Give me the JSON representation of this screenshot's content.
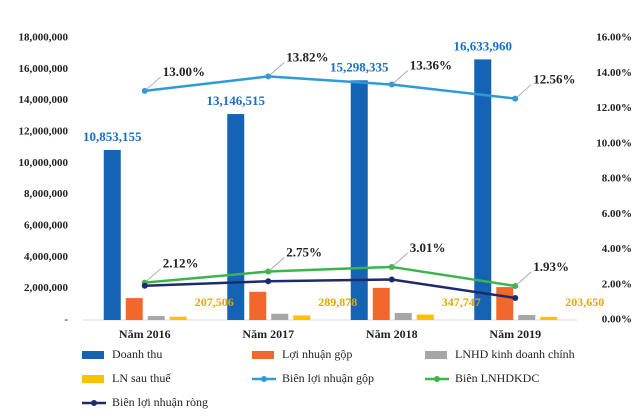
{
  "chart_data": {
    "type": "combo",
    "categories": [
      "Năm 2016",
      "Năm 2017",
      "Năm 2018",
      "Năm 2019"
    ],
    "ylim": [
      0,
      18000000
    ],
    "yticks": [
      {
        "value": 0,
        "label": "-"
      },
      {
        "value": 2000000,
        "label": "2,000,000"
      },
      {
        "value": 4000000,
        "label": "4,000,000"
      },
      {
        "value": 6000000,
        "label": "6,000,000"
      },
      {
        "value": 8000000,
        "label": "8,000,000"
      },
      {
        "value": 10000000,
        "label": "10,000,000"
      },
      {
        "value": 12000000,
        "label": "12,000,000"
      },
      {
        "value": 14000000,
        "label": "14,000,000"
      },
      {
        "value": 16000000,
        "label": "16,000,000"
      },
      {
        "value": 18000000,
        "label": "18,000,000"
      }
    ],
    "y2lim": [
      0,
      16
    ],
    "y2ticks": [
      {
        "value": 0,
        "label": "0.00%"
      },
      {
        "value": 2,
        "label": "2.00%"
      },
      {
        "value": 4,
        "label": "4.00%"
      },
      {
        "value": 6,
        "label": "6.00%"
      },
      {
        "value": 8,
        "label": "8.00%"
      },
      {
        "value": 10,
        "label": "10.00%"
      },
      {
        "value": 12,
        "label": "12.00%"
      },
      {
        "value": 14,
        "label": "14.00%"
      },
      {
        "value": 16,
        "label": "16.00%"
      }
    ],
    "series": [
      {
        "name": "Doanh thu",
        "type": "bar",
        "color": "#1463b4",
        "values": [
          10853155,
          13146515,
          15298335,
          16633960
        ],
        "value_labels": [
          "10,853,155",
          "13,146,515",
          "15,298,335",
          "16,633,960"
        ],
        "label_color": "#1a6fc0"
      },
      {
        "name": "Lợi nhuận gộp",
        "type": "bar",
        "color": "#f2682c",
        "values": [
          1400000,
          1800000,
          2050000,
          2100000
        ]
      },
      {
        "name": "LNHD kinh doanh chính",
        "type": "bar",
        "color": "#a6a6a6",
        "values": [
          250000,
          400000,
          450000,
          320000
        ]
      },
      {
        "name": "LN sau thuế",
        "type": "bar",
        "color": "#ffc000",
        "values": [
          207506,
          289878,
          347747,
          203650
        ],
        "value_labels": [
          "207,506",
          "289,878",
          "347,747",
          "203,650"
        ],
        "label_color": "#e0a800"
      },
      {
        "name": "Biên lợi nhuận gộp",
        "type": "line",
        "axis": "y2",
        "color": "#2e9bd6",
        "values": [
          13.0,
          13.82,
          13.36,
          12.56
        ],
        "value_labels": [
          "13.00%",
          "13.82%",
          "13.36%",
          "12.56%"
        ],
        "label_color": "#222"
      },
      {
        "name": "Biên LNHDKDC",
        "type": "line",
        "axis": "y2",
        "color": "#3cb44b",
        "values": [
          2.12,
          2.75,
          3.01,
          1.93
        ],
        "value_labels": [
          "2.12%",
          "2.75%",
          "3.01%",
          "1.93%"
        ],
        "label_color": "#222"
      },
      {
        "name": "Biên lợi nhuận ròng",
        "type": "line",
        "axis": "y2",
        "color": "#1f2a6b",
        "values": [
          1.94,
          2.2,
          2.3,
          1.25
        ]
      }
    ]
  }
}
